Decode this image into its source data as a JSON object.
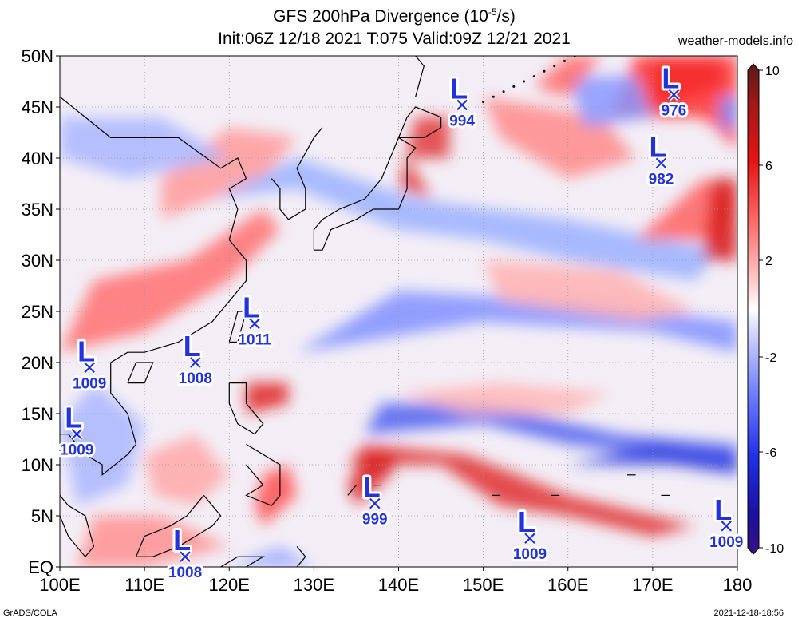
{
  "header": {
    "title_prefix": "GFS 200hPa Divergence (10",
    "title_exp": "-5",
    "title_suffix": "/s)",
    "subtitle": "Init:06Z 12/18 2021 T:075 Valid:09Z 12/21 2021",
    "site": "weather-models.info"
  },
  "axes": {
    "lat_labels": [
      "50N",
      "45N",
      "40N",
      "35N",
      "30N",
      "25N",
      "20N",
      "15N",
      "10N",
      "5N",
      "EQ"
    ],
    "lon_labels": [
      "100E",
      "110E",
      "120E",
      "130E",
      "140E",
      "150E",
      "160E",
      "170E",
      "180"
    ]
  },
  "colorbar": {
    "labels": [
      "10",
      "6",
      "2",
      "-2",
      "-6",
      "-10"
    ],
    "colors": [
      "#6a0f0f",
      "#b01010",
      "#e81010",
      "#ff6060",
      "#ffb0b0",
      "#ffffff",
      "#b0b8ff",
      "#6070ff",
      "#1020e0",
      "#1a0a90",
      "#3a0a80"
    ]
  },
  "lows": [
    {
      "value": "994",
      "lon": 147.5,
      "lat": 45.2
    },
    {
      "value": "976",
      "lon": 172.5,
      "lat": 46.2
    },
    {
      "value": "982",
      "lon": 171.0,
      "lat": 39.5
    },
    {
      "value": "1011",
      "lon": 123.0,
      "lat": 23.8
    },
    {
      "value": "1009",
      "lon": 103.5,
      "lat": 19.5
    },
    {
      "value": "1008",
      "lon": 116.0,
      "lat": 20.0
    },
    {
      "value": "1009",
      "lon": 102.0,
      "lat": 13.0
    },
    {
      "value": "999",
      "lon": 137.2,
      "lat": 6.2
    },
    {
      "value": "1009",
      "lon": 155.5,
      "lat": 2.8
    },
    {
      "value": "1009",
      "lon": 178.7,
      "lat": 4.0
    },
    {
      "value": "1008",
      "lon": 114.8,
      "lat": 1.0
    }
  ],
  "footer": {
    "left": "GrADS/COLA",
    "right": "2021-12-18-18:56"
  }
}
